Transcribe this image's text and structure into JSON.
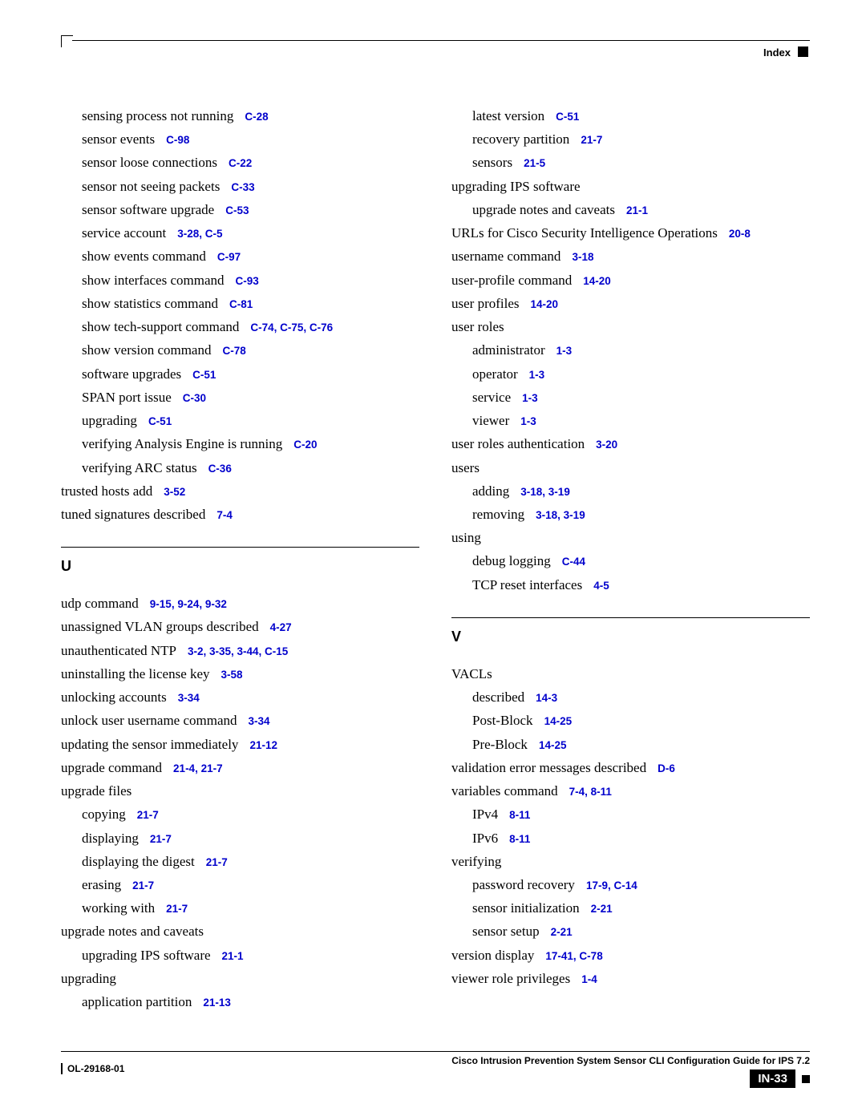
{
  "header": {
    "label": "Index"
  },
  "footer": {
    "doc_id": "OL-29168-01",
    "guide": "Cisco Intrusion Prevention System Sensor CLI Configuration Guide for IPS 7.2",
    "page_num": "IN-33"
  },
  "colors": {
    "link": "#0000cc",
    "text": "#000000",
    "bg": "#ffffff"
  },
  "sections": {
    "U": "U",
    "V": "V"
  },
  "left": [
    {
      "indent": 1,
      "text": "sensing process not running",
      "ref": "C-28"
    },
    {
      "indent": 1,
      "text": "sensor events",
      "ref": "C-98"
    },
    {
      "indent": 1,
      "text": "sensor loose connections",
      "ref": "C-22"
    },
    {
      "indent": 1,
      "text": "sensor not seeing packets",
      "ref": "C-33"
    },
    {
      "indent": 1,
      "text": "sensor software upgrade",
      "ref": "C-53"
    },
    {
      "indent": 1,
      "text": "service account",
      "ref": "3-28, C-5"
    },
    {
      "indent": 1,
      "text": "show events command",
      "ref": "C-97"
    },
    {
      "indent": 1,
      "text": "show interfaces command",
      "ref": "C-93"
    },
    {
      "indent": 1,
      "text": "show statistics command",
      "ref": "C-81"
    },
    {
      "indent": 1,
      "text": "show tech-support command",
      "ref": "C-74, C-75, C-76"
    },
    {
      "indent": 1,
      "text": "show version command",
      "ref": "C-78"
    },
    {
      "indent": 1,
      "text": "software upgrades",
      "ref": "C-51"
    },
    {
      "indent": 1,
      "text": "SPAN port issue",
      "ref": "C-30"
    },
    {
      "indent": 1,
      "text": "upgrading",
      "ref": "C-51"
    },
    {
      "indent": 1,
      "text": "verifying Analysis Engine is running",
      "ref": "C-20"
    },
    {
      "indent": 1,
      "text": "verifying ARC status",
      "ref": "C-36"
    },
    {
      "indent": 0,
      "text": "trusted hosts add",
      "ref": "3-52"
    },
    {
      "indent": 0,
      "text": "tuned signatures described",
      "ref": "7-4"
    }
  ],
  "left_u": [
    {
      "indent": 0,
      "text": "udp command",
      "ref": "9-15, 9-24, 9-32"
    },
    {
      "indent": 0,
      "text": "unassigned VLAN groups described",
      "ref": "4-27"
    },
    {
      "indent": 0,
      "text": "unauthenticated NTP",
      "ref": "3-2, 3-35, 3-44, C-15"
    },
    {
      "indent": 0,
      "text": "uninstalling the license key",
      "ref": "3-58"
    },
    {
      "indent": 0,
      "text": "unlocking accounts",
      "ref": "3-34"
    },
    {
      "indent": 0,
      "text": "unlock user username command",
      "ref": "3-34"
    },
    {
      "indent": 0,
      "text": "updating the sensor immediately",
      "ref": "21-12"
    },
    {
      "indent": 0,
      "text": "upgrade command",
      "ref": "21-4, 21-7"
    },
    {
      "indent": 0,
      "text": "upgrade files"
    },
    {
      "indent": 1,
      "text": "copying",
      "ref": "21-7"
    },
    {
      "indent": 1,
      "text": "displaying",
      "ref": "21-7"
    },
    {
      "indent": 1,
      "text": "displaying the digest",
      "ref": "21-7"
    },
    {
      "indent": 1,
      "text": "erasing",
      "ref": "21-7"
    },
    {
      "indent": 1,
      "text": "working with",
      "ref": "21-7"
    },
    {
      "indent": 0,
      "text": "upgrade notes and caveats"
    },
    {
      "indent": 1,
      "text": "upgrading IPS software",
      "ref": "21-1"
    },
    {
      "indent": 0,
      "text": "upgrading"
    },
    {
      "indent": 1,
      "text": "application partition",
      "ref": "21-13"
    }
  ],
  "right": [
    {
      "indent": 1,
      "text": "latest version",
      "ref": "C-51"
    },
    {
      "indent": 1,
      "text": "recovery partition",
      "ref": "21-7"
    },
    {
      "indent": 1,
      "text": "sensors",
      "ref": "21-5"
    },
    {
      "indent": 0,
      "text": "upgrading IPS software"
    },
    {
      "indent": 1,
      "text": "upgrade notes and caveats",
      "ref": "21-1"
    },
    {
      "indent": 0,
      "text": "URLs for Cisco Security Intelligence Operations",
      "ref": "20-8"
    },
    {
      "indent": 0,
      "text": "username command",
      "ref": "3-18"
    },
    {
      "indent": 0,
      "text": "user-profile command",
      "ref": "14-20"
    },
    {
      "indent": 0,
      "text": "user profiles",
      "ref": "14-20"
    },
    {
      "indent": 0,
      "text": "user roles"
    },
    {
      "indent": 1,
      "text": "administrator",
      "ref": "1-3"
    },
    {
      "indent": 1,
      "text": "operator",
      "ref": "1-3"
    },
    {
      "indent": 1,
      "text": "service",
      "ref": "1-3"
    },
    {
      "indent": 1,
      "text": "viewer",
      "ref": "1-3"
    },
    {
      "indent": 0,
      "text": "user roles authentication",
      "ref": "3-20"
    },
    {
      "indent": 0,
      "text": "users"
    },
    {
      "indent": 1,
      "text": "adding",
      "ref": "3-18, 3-19"
    },
    {
      "indent": 1,
      "text": "removing",
      "ref": "3-18, 3-19"
    },
    {
      "indent": 0,
      "text": "using"
    },
    {
      "indent": 1,
      "text": "debug logging",
      "ref": "C-44"
    },
    {
      "indent": 1,
      "text": "TCP reset interfaces",
      "ref": "4-5"
    }
  ],
  "right_v": [
    {
      "indent": 0,
      "text": "VACLs"
    },
    {
      "indent": 1,
      "text": "described",
      "ref": "14-3"
    },
    {
      "indent": 1,
      "text": "Post-Block",
      "ref": "14-25"
    },
    {
      "indent": 1,
      "text": "Pre-Block",
      "ref": "14-25"
    },
    {
      "indent": 0,
      "text": "validation error messages described",
      "ref": "D-6"
    },
    {
      "indent": 0,
      "text": "variables command",
      "ref": "7-4, 8-11"
    },
    {
      "indent": 1,
      "text": "IPv4",
      "ref": "8-11"
    },
    {
      "indent": 1,
      "text": "IPv6",
      "ref": "8-11"
    },
    {
      "indent": 0,
      "text": "verifying"
    },
    {
      "indent": 1,
      "text": "password recovery",
      "ref": "17-9, C-14"
    },
    {
      "indent": 1,
      "text": "sensor initialization",
      "ref": "2-21"
    },
    {
      "indent": 1,
      "text": "sensor setup",
      "ref": "2-21"
    },
    {
      "indent": 0,
      "text": "version display",
      "ref": "17-41, C-78"
    },
    {
      "indent": 0,
      "text": "viewer role privileges",
      "ref": "1-4"
    }
  ]
}
